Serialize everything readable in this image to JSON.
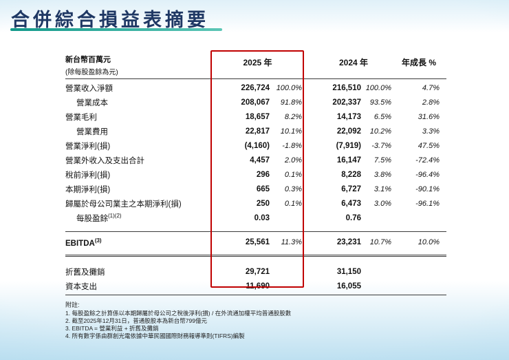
{
  "title": "合併綜合損益表摘要",
  "table": {
    "header": {
      "unit_line1": "新台幣百萬元",
      "unit_line2": "(除每股盈餘為元)",
      "col_2025": "2025 年",
      "col_2024": "2024 年",
      "col_growth": "年成長 %"
    },
    "rows": [
      {
        "label": "營業收入淨額",
        "sup": "",
        "v2025": "226,724",
        "p2025": "100.0%",
        "v2024": "216,510",
        "p2024": "100.0%",
        "growth": "4.7%"
      },
      {
        "label": "營業成本",
        "sup": "",
        "v2025": "208,067",
        "p2025": "91.8%",
        "v2024": "202,337",
        "p2024": "93.5%",
        "growth": "2.8%"
      },
      {
        "label": "營業毛利",
        "sup": "",
        "v2025": "18,657",
        "p2025": "8.2%",
        "v2024": "14,173",
        "p2024": "6.5%",
        "growth": "31.6%"
      },
      {
        "label": "營業費用",
        "sup": "",
        "v2025": "22,817",
        "p2025": "10.1%",
        "v2024": "22,092",
        "p2024": "10.2%",
        "growth": "3.3%"
      },
      {
        "label": "營業淨利(損)",
        "sup": "",
        "v2025": "(4,160)",
        "p2025": "-1.8%",
        "v2024": "(7,919)",
        "p2024": "-3.7%",
        "growth": "47.5%"
      },
      {
        "label": "營業外收入及支出合計",
        "sup": "",
        "v2025": "4,457",
        "p2025": "2.0%",
        "v2024": "16,147",
        "p2024": "7.5%",
        "growth": "-72.4%"
      },
      {
        "label": "稅前淨利(損)",
        "sup": "",
        "v2025": "296",
        "p2025": "0.1%",
        "v2024": "8,228",
        "p2024": "3.8%",
        "growth": "-96.4%"
      },
      {
        "label": "本期淨利(損)",
        "sup": "",
        "v2025": "665",
        "p2025": "0.3%",
        "v2024": "6,727",
        "p2024": "3.1%",
        "growth": "-90.1%"
      },
      {
        "label": "歸屬於母公司業主之本期淨利(損)",
        "sup": "",
        "v2025": "250",
        "p2025": "0.1%",
        "v2024": "6,473",
        "p2024": "3.0%",
        "growth": "-96.1%"
      },
      {
        "label": "每股盈餘",
        "sup": "(1)(2)",
        "v2025": "0.03",
        "p2025": "",
        "v2024": "0.76",
        "p2024": "",
        "growth": ""
      }
    ],
    "ebitda": {
      "label": "EBITDA",
      "sup": "(3)",
      "v2025": "25,561",
      "p2025": "11.3%",
      "v2024": "23,231",
      "p2024": "10.7%",
      "growth": "10.0%"
    },
    "extra_rows": [
      {
        "label": "折舊及攤銷",
        "v2025": "29,721",
        "v2024": "31,150"
      },
      {
        "label": "資本支出",
        "v2025": "11,690",
        "v2024": "16,055"
      }
    ]
  },
  "notes": {
    "heading": "附註:",
    "items": [
      "1.  每股盈餘之計算係以本期歸屬於母公司之稅後淨利(損) / 在外流通加權平均普通股股數",
      "2.  截至2025年12月31日，普通股股本為新台幣799億元",
      "3.  EBITDA = 營業利益 + 折舊及攤銷",
      "4.  所有數字係由群創光電依據中華民國國際財務報導準則(TIFRS)編製"
    ]
  },
  "colors": {
    "title": "#1F3864",
    "underline": "#1AA08C",
    "highlight_border": "#C00000"
  }
}
